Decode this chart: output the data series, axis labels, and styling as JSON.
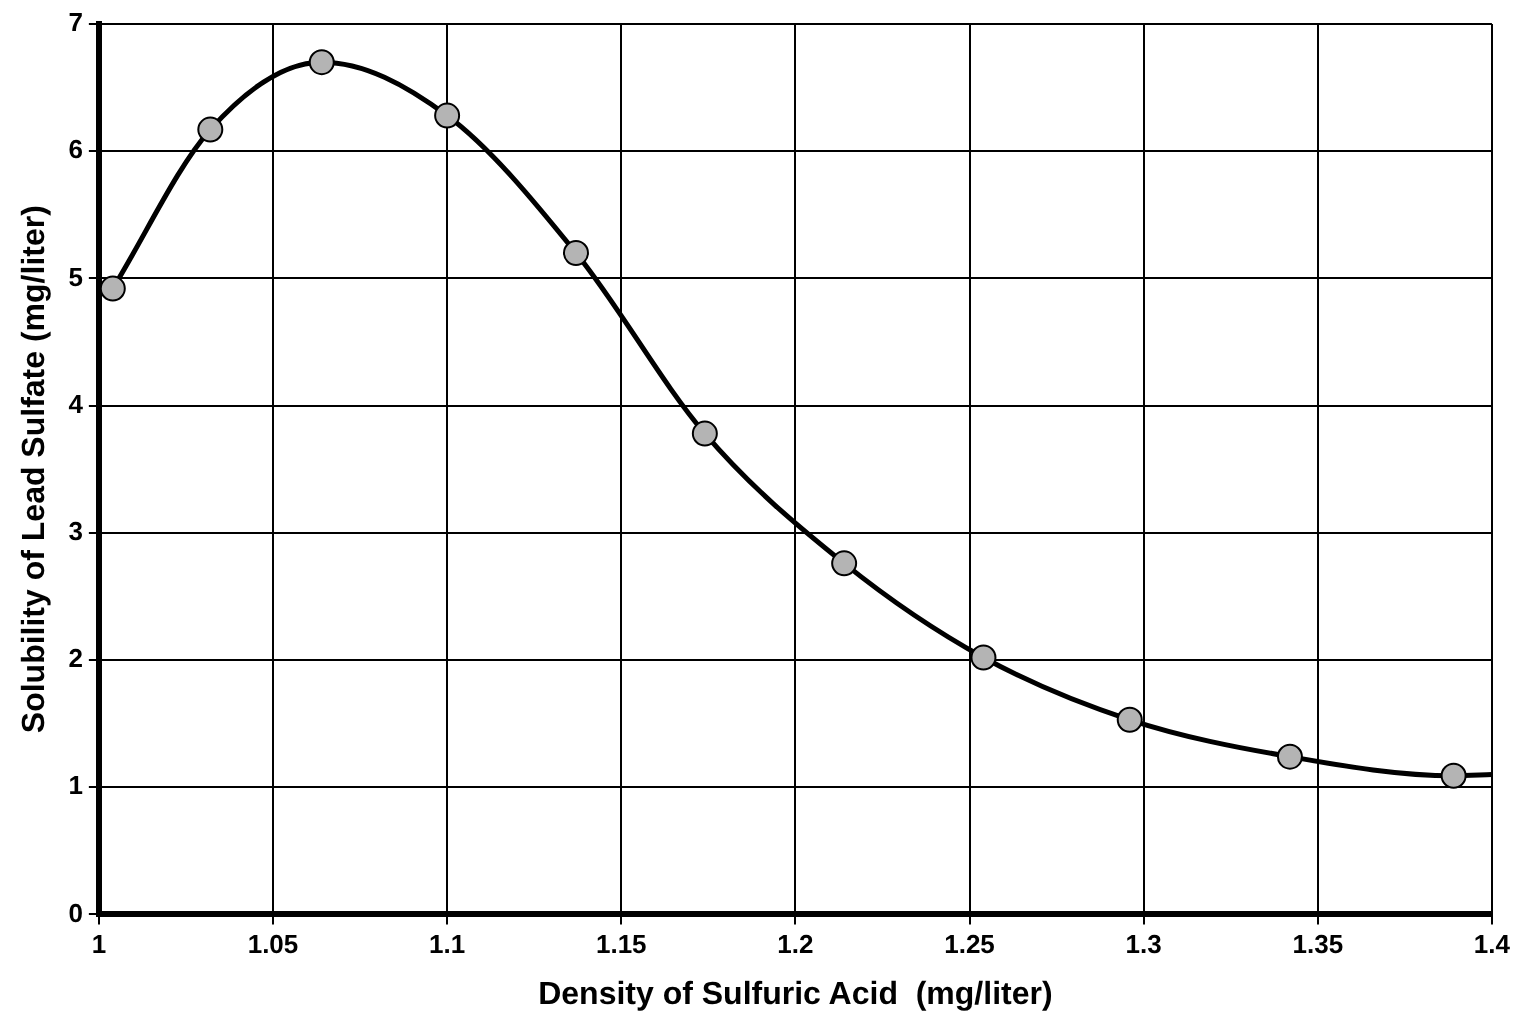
{
  "chart_data": {
    "type": "scatter",
    "xlabel": "Density of Sulfuric Acid  (mg/liter)",
    "ylabel": "Solubility of Lead Sulfate (mg/liter)",
    "x": [
      1.004,
      1.032,
      1.064,
      1.1,
      1.137,
      1.174,
      1.214,
      1.254,
      1.296,
      1.342,
      1.389
    ],
    "series": [
      {
        "type": "line",
        "marker": "none",
        "color": "#000000",
        "x": [
          1.004,
          1.032,
          1.064,
          1.1,
          1.137,
          1.174,
          1.214,
          1.254,
          1.296,
          1.342,
          1.389,
          1.4
        ],
        "values": [
          4.92,
          6.17,
          6.7,
          6.28,
          5.2,
          3.78,
          2.76,
          2.02,
          1.53,
          1.24,
          1.09,
          1.1
        ]
      },
      {
        "type": "scatter",
        "marker": "circle",
        "color": "#b4b4b4",
        "values": [
          4.92,
          6.17,
          6.7,
          6.28,
          5.2,
          3.78,
          2.76,
          2.02,
          1.53,
          1.24,
          1.09
        ]
      }
    ],
    "xlim": [
      1,
      1.4
    ],
    "xticks": [
      1,
      1.05,
      1.1,
      1.15,
      1.2,
      1.25,
      1.3,
      1.35,
      1.4
    ],
    "ylim": [
      0,
      7
    ],
    "yticks": [
      0,
      1,
      2,
      3,
      4,
      5,
      6,
      7
    ],
    "grid": true,
    "legend": false
  }
}
